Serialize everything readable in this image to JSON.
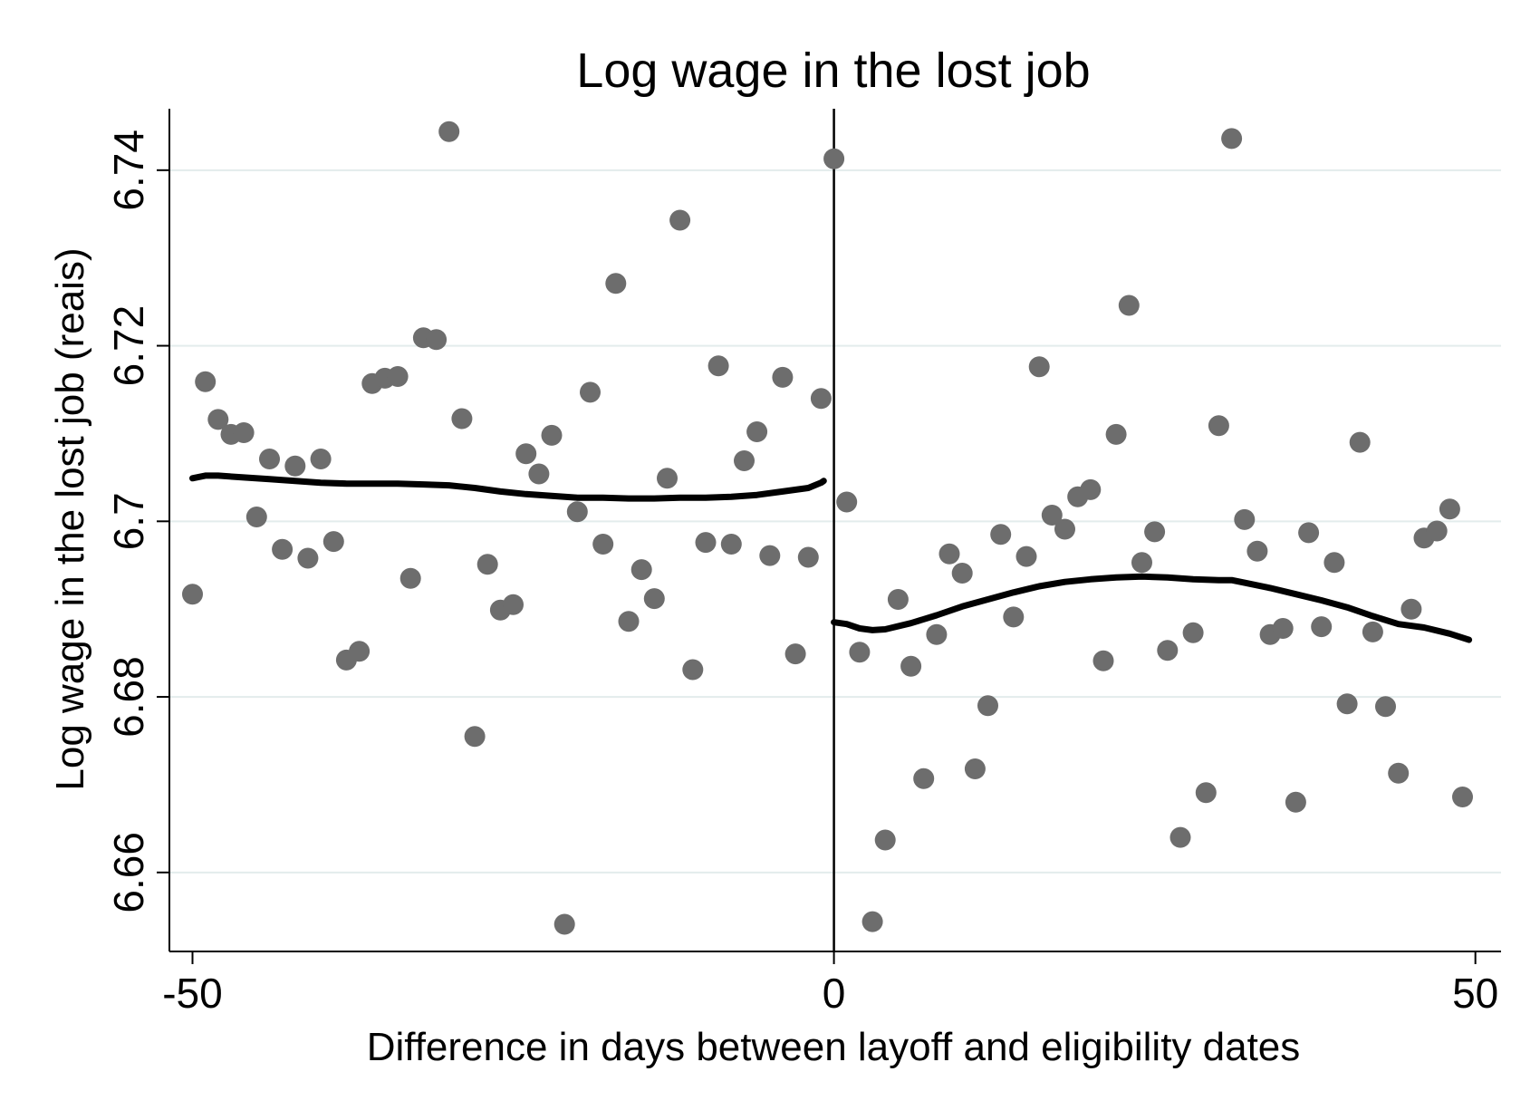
{
  "chart_data": {
    "type": "scatter",
    "title": "Log wage in the lost job",
    "xlabel": "Difference in days between layoff and eligibility dates",
    "ylabel": "Log wage in the lost job (reais)",
    "xlim": [
      -51.8,
      52
    ],
    "ylim": [
      6.651,
      6.747
    ],
    "x_ticks": [
      -50,
      0,
      50
    ],
    "x_tick_labels": [
      "-50",
      "0",
      "50"
    ],
    "y_ticks": [
      6.66,
      6.68,
      6.7,
      6.72,
      6.74
    ],
    "y_tick_labels": [
      "6.66",
      "6.68",
      "6.7",
      "6.72",
      "6.74"
    ],
    "grid": "horizontal",
    "legend": "none",
    "cutoff_x": 0,
    "colors": {
      "points": "#6d6d6d",
      "fit": "#000000",
      "grid": "#e3ecec"
    },
    "series": [
      {
        "type": "scatter",
        "points": [
          [
            -50,
            6.6917
          ],
          [
            -49,
            6.7159
          ],
          [
            -48,
            6.7116
          ],
          [
            -47,
            6.7099
          ],
          [
            -46,
            6.7101
          ],
          [
            -45,
            6.7005
          ],
          [
            -44,
            6.7071
          ],
          [
            -43,
            6.6968
          ],
          [
            -42,
            6.7063
          ],
          [
            -41,
            6.6958
          ],
          [
            -40,
            6.7071
          ],
          [
            -39,
            6.6977
          ],
          [
            -38,
            6.6842
          ],
          [
            -37,
            6.6852
          ],
          [
            -36,
            6.7157
          ],
          [
            -35,
            6.7163
          ],
          [
            -34,
            6.7165
          ],
          [
            -33,
            6.6935
          ],
          [
            -32,
            6.7209
          ],
          [
            -31,
            6.7207
          ],
          [
            -30,
            6.7444
          ],
          [
            -29,
            6.7117
          ],
          [
            -28,
            6.6755
          ],
          [
            -27,
            6.6951
          ],
          [
            -26,
            6.6899
          ],
          [
            -25,
            6.6905
          ],
          [
            -24,
            6.7077
          ],
          [
            -23,
            6.7054
          ],
          [
            -22,
            6.7098
          ],
          [
            -21,
            6.6541
          ],
          [
            -20,
            6.7011
          ],
          [
            -19,
            6.7147
          ],
          [
            -18,
            6.6974
          ],
          [
            -17,
            6.7271
          ],
          [
            -16,
            6.6886
          ],
          [
            -15,
            6.6945
          ],
          [
            -14,
            6.6912
          ],
          [
            -13,
            6.7049
          ],
          [
            -12,
            6.7343
          ],
          [
            -11,
            6.6831
          ],
          [
            -10,
            6.6976
          ],
          [
            -9,
            6.7177
          ],
          [
            -8,
            6.6974
          ],
          [
            -7,
            6.7069
          ],
          [
            -6,
            6.7102
          ],
          [
            -5,
            6.6961
          ],
          [
            -4,
            6.7164
          ],
          [
            -3,
            6.6849
          ],
          [
            -2,
            6.6959
          ],
          [
            -1,
            6.714
          ],
          [
            0,
            6.7413
          ],
          [
            1,
            6.7022
          ],
          [
            2,
            6.6851
          ],
          [
            3,
            6.6544
          ],
          [
            4,
            6.6637
          ],
          [
            5,
            6.6911
          ],
          [
            6,
            6.6835
          ],
          [
            7,
            6.6707
          ],
          [
            8,
            6.6871
          ],
          [
            9,
            6.6963
          ],
          [
            10,
            6.6941
          ],
          [
            11,
            6.6718
          ],
          [
            12,
            6.679
          ],
          [
            13,
            6.6985
          ],
          [
            14,
            6.6891
          ],
          [
            15,
            6.696
          ],
          [
            16,
            6.7176
          ],
          [
            17,
            6.7007
          ],
          [
            18,
            6.6991
          ],
          [
            19,
            6.7028
          ],
          [
            20,
            6.7036
          ],
          [
            21,
            6.6841
          ],
          [
            22,
            6.7099
          ],
          [
            23,
            6.7246
          ],
          [
            24,
            6.6953
          ],
          [
            25,
            6.6988
          ],
          [
            26,
            6.6853
          ],
          [
            27,
            6.664
          ],
          [
            28,
            6.6873
          ],
          [
            29,
            6.6691
          ],
          [
            30,
            6.7109
          ],
          [
            31,
            6.7436
          ],
          [
            32,
            6.7002
          ],
          [
            33,
            6.6966
          ],
          [
            34,
            6.6871
          ],
          [
            35,
            6.6878
          ],
          [
            36,
            6.668
          ],
          [
            37,
            6.6987
          ],
          [
            38,
            6.688
          ],
          [
            39,
            6.6953
          ],
          [
            40,
            6.6792
          ],
          [
            41,
            6.709
          ],
          [
            42,
            6.6874
          ],
          [
            43,
            6.6789
          ],
          [
            44,
            6.6713
          ],
          [
            45,
            6.69
          ],
          [
            46,
            6.6981
          ],
          [
            47,
            6.6989
          ],
          [
            48,
            6.7014
          ],
          [
            49,
            6.6686
          ]
        ]
      },
      {
        "type": "line",
        "segment": "left",
        "points": [
          [
            -50,
            6.7049
          ],
          [
            -49,
            6.7052
          ],
          [
            -48,
            6.7052
          ],
          [
            -46,
            6.705
          ],
          [
            -44,
            6.7048
          ],
          [
            -42,
            6.7046
          ],
          [
            -40,
            6.7044
          ],
          [
            -38,
            6.7043
          ],
          [
            -36,
            6.7043
          ],
          [
            -34,
            6.7043
          ],
          [
            -32,
            6.7042
          ],
          [
            -30,
            6.7041
          ],
          [
            -28,
            6.7038
          ],
          [
            -26,
            6.7034
          ],
          [
            -24,
            6.7031
          ],
          [
            -22,
            6.7029
          ],
          [
            -20,
            6.7027
          ],
          [
            -18,
            6.7027
          ],
          [
            -16,
            6.7026
          ],
          [
            -14,
            6.7026
          ],
          [
            -12,
            6.7027
          ],
          [
            -10,
            6.7027
          ],
          [
            -8,
            6.7028
          ],
          [
            -6,
            6.703
          ],
          [
            -4,
            6.7034
          ],
          [
            -2,
            6.7038
          ],
          [
            -1,
            6.7044
          ],
          [
            -0.8,
            6.7046
          ]
        ]
      },
      {
        "type": "line",
        "segment": "right",
        "points": [
          [
            0,
            6.6885
          ],
          [
            1,
            6.6883
          ],
          [
            2,
            6.6878
          ],
          [
            3,
            6.6876
          ],
          [
            4,
            6.6877
          ],
          [
            6,
            6.6884
          ],
          [
            8,
            6.6893
          ],
          [
            10,
            6.6903
          ],
          [
            12,
            6.6911
          ],
          [
            14,
            6.6919
          ],
          [
            16,
            6.6926
          ],
          [
            18,
            6.6931
          ],
          [
            20,
            6.6934
          ],
          [
            22,
            6.6936
          ],
          [
            24,
            6.6937
          ],
          [
            26,
            6.6936
          ],
          [
            28,
            6.6934
          ],
          [
            30,
            6.6933
          ],
          [
            31,
            6.6933
          ],
          [
            32,
            6.693
          ],
          [
            34,
            6.6924
          ],
          [
            36,
            6.6917
          ],
          [
            38,
            6.691
          ],
          [
            40,
            6.6902
          ],
          [
            42,
            6.6892
          ],
          [
            44,
            6.6883
          ],
          [
            46,
            6.6879
          ],
          [
            48,
            6.6872
          ],
          [
            49.5,
            6.6865
          ]
        ]
      }
    ]
  }
}
